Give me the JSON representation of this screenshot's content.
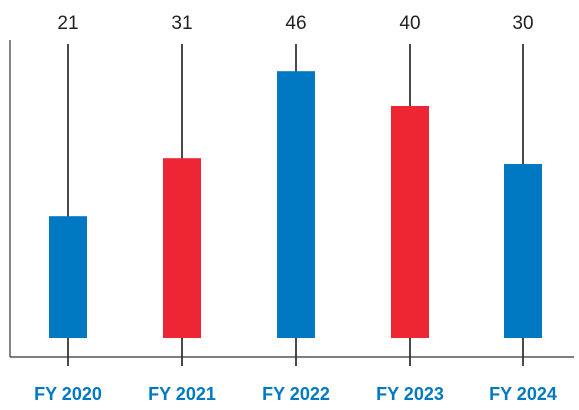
{
  "chart_data": {
    "type": "bar",
    "categories": [
      "FY 2020",
      "FY 2021",
      "FY 2022",
      "FY 2023",
      "FY 2024"
    ],
    "values": [
      21,
      31,
      46,
      40,
      30
    ],
    "data_labels": [
      "21",
      "31",
      "46",
      "40",
      "30"
    ],
    "bar_colors": [
      "#0079c2",
      "#ee2532",
      "#0079c2",
      "#ee2532",
      "#0079c2"
    ],
    "title": "",
    "xlabel": "",
    "ylabel": "",
    "ylim": [
      0,
      50
    ],
    "grid": false,
    "legend": "none"
  },
  "colors": {
    "category_label": "#0079c2",
    "stem": "#4a4a4a",
    "axis": "#333333"
  }
}
